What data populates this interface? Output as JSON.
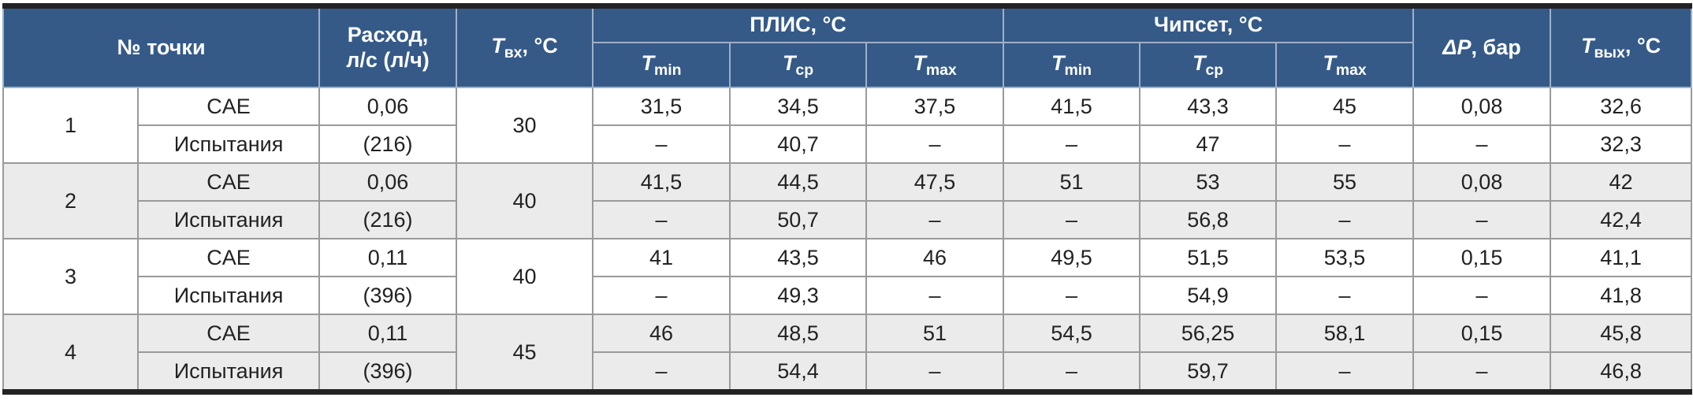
{
  "header": {
    "point": "№ точки",
    "flow": [
      "Расход,",
      "л/с (л/ч)"
    ],
    "tin": {
      "symbol": "T",
      "sub": "вх",
      "unit": ", °C"
    },
    "fpga": {
      "title": "ПЛИС, °C",
      "columns": [
        {
          "symbol": "T",
          "sub": "min"
        },
        {
          "symbol": "T",
          "sub": "ср"
        },
        {
          "symbol": "T",
          "sub": "max"
        }
      ]
    },
    "chipset": {
      "title": "Чипсет, °C",
      "columns": [
        {
          "symbol": "T",
          "sub": "min"
        },
        {
          "symbol": "T",
          "sub": "ср"
        },
        {
          "symbol": "T",
          "sub": "max"
        }
      ]
    },
    "dp": {
      "symbol": "ΔP",
      "unit": ", бар"
    },
    "tout": {
      "symbol": "T",
      "sub": "вых",
      "unit": ", °C"
    }
  },
  "rows": [
    {
      "point": "1",
      "tin": "30",
      "lines": [
        {
          "method": "CAE",
          "flow": "0,06",
          "fpga": [
            "31,5",
            "34,5",
            "37,5"
          ],
          "chipset": [
            "41,5",
            "43,3",
            "45"
          ],
          "dp": "0,08",
          "tout": "32,6"
        },
        {
          "method": "Испытания",
          "flow": "(216)",
          "fpga": [
            "–",
            "40,7",
            "–"
          ],
          "chipset": [
            "–",
            "47",
            "–"
          ],
          "dp": "–",
          "tout": "32,3"
        }
      ]
    },
    {
      "point": "2",
      "tin": "40",
      "lines": [
        {
          "method": "CAE",
          "flow": "0,06",
          "fpga": [
            "41,5",
            "44,5",
            "47,5"
          ],
          "chipset": [
            "51",
            "53",
            "55"
          ],
          "dp": "0,08",
          "tout": "42"
        },
        {
          "method": "Испытания",
          "flow": "(216)",
          "fpga": [
            "–",
            "50,7",
            "–"
          ],
          "chipset": [
            "–",
            "56,8",
            "–"
          ],
          "dp": "–",
          "tout": "42,4"
        }
      ]
    },
    {
      "point": "3",
      "tin": "40",
      "lines": [
        {
          "method": "CAE",
          "flow": "0,11",
          "fpga": [
            "41",
            "43,5",
            "46"
          ],
          "chipset": [
            "49,5",
            "51,5",
            "53,5"
          ],
          "dp": "0,15",
          "tout": "41,1"
        },
        {
          "method": "Испытания",
          "flow": "(396)",
          "fpga": [
            "–",
            "49,3",
            "–"
          ],
          "chipset": [
            "–",
            "54,9",
            "–"
          ],
          "dp": "–",
          "tout": "41,8"
        }
      ]
    },
    {
      "point": "4",
      "tin": "45",
      "lines": [
        {
          "method": "CAE",
          "flow": "0,11",
          "fpga": [
            "46",
            "48,5",
            "51"
          ],
          "chipset": [
            "54,5",
            "56,25",
            "58,1"
          ],
          "dp": "0,15",
          "tout": "45,8"
        },
        {
          "method": "Испытания",
          "flow": "(396)",
          "fpga": [
            "–",
            "54,4",
            "–"
          ],
          "chipset": [
            "–",
            "59,7",
            "–"
          ],
          "dp": "–",
          "tout": "46,8"
        }
      ]
    }
  ]
}
